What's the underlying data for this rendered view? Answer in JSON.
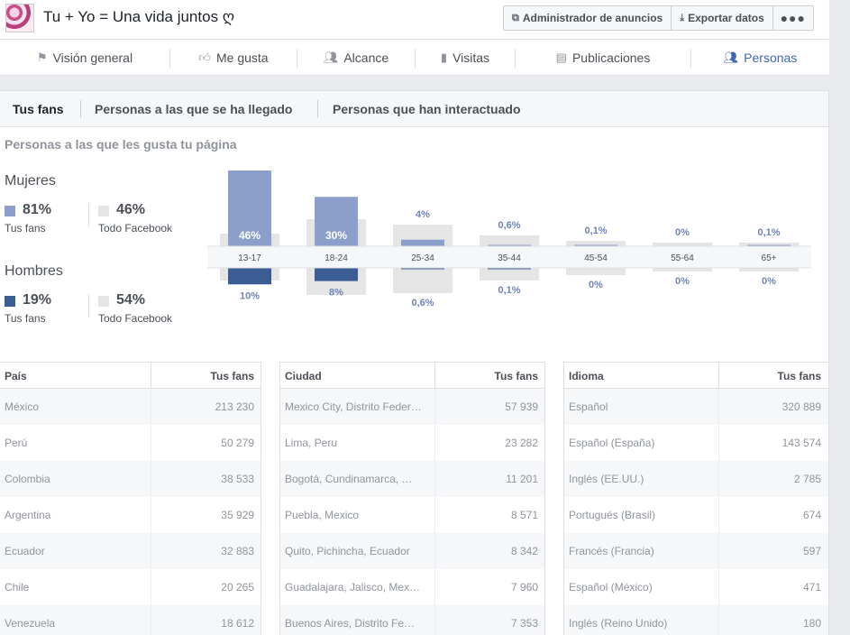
{
  "header": {
    "page_title": "Tu + Yo = Una vida juntos ღ",
    "ads_manager": "Administrador de anuncios",
    "export": "Exportar datos",
    "more": "●●●"
  },
  "nav": {
    "tabs": [
      {
        "label": "Visión general",
        "icon": "flag-icon"
      },
      {
        "label": "Me gusta",
        "icon": "thumbs-up-icon"
      },
      {
        "label": "Alcance",
        "icon": "people-icon"
      },
      {
        "label": "Visitas",
        "icon": "bar-chart-icon"
      },
      {
        "label": "Publicaciones",
        "icon": "posts-icon"
      },
      {
        "label": "Personas",
        "icon": "group-icon"
      }
    ],
    "active": "Personas"
  },
  "subtabs": [
    "Tus fans",
    "Personas a las que se ha llegado",
    "Personas que han interactuado"
  ],
  "section_title": "Personas a las que les gusta tu página",
  "colors": {
    "women": "#8c9fcb",
    "men": "#3b5d94",
    "facebook": "#e5e5e5",
    "accent": "#4267b2"
  },
  "summary": {
    "women": {
      "label": "Mujeres",
      "fans_pct": "81%",
      "fans_caption": "Tus fans",
      "fb_pct": "46%",
      "fb_caption": "Todo Facebook"
    },
    "men": {
      "label": "Hombres",
      "fans_pct": "19%",
      "fans_caption": "Tus fans",
      "fb_pct": "54%",
      "fb_caption": "Todo Facebook"
    }
  },
  "chart_data": {
    "type": "bar",
    "categories": [
      "13-17",
      "18-24",
      "25-34",
      "35-44",
      "45-54",
      "55-64",
      "65+"
    ],
    "series": [
      {
        "name": "Mujeres",
        "values": [
          46,
          30,
          4,
          0.6,
          0.1,
          0,
          0.1
        ],
        "labels": [
          "46%",
          "30%",
          "4%",
          "0,6%",
          "0,1%",
          "0%",
          "0,1%"
        ]
      },
      {
        "name": "Hombres",
        "values": [
          10,
          8,
          0.6,
          0.1,
          0,
          0,
          0
        ],
        "labels": [
          "10%",
          "8%",
          "0,6%",
          "0,1%",
          "0%",
          "0%",
          "0%"
        ]
      }
    ],
    "facebook_women": [
      7,
      15,
      12,
      6,
      3,
      2,
      2
    ],
    "facebook_men": [
      7,
      15,
      14,
      7,
      4,
      2,
      2
    ]
  },
  "tables": [
    {
      "col1": "País",
      "col2": "Tus fans",
      "rows": [
        [
          "México",
          "213 230"
        ],
        [
          "Perú",
          "50 279"
        ],
        [
          "Colombia",
          "38 533"
        ],
        [
          "Argentina",
          "35 929"
        ],
        [
          "Ecuador",
          "32 883"
        ],
        [
          "Chile",
          "20 265"
        ],
        [
          "Venezuela",
          "18 612"
        ]
      ]
    },
    {
      "col1": "Ciudad",
      "col2": "Tus fans",
      "rows": [
        [
          "Mexico City, Distrito Feder…",
          "57 939"
        ],
        [
          "Lima, Peru",
          "23 282"
        ],
        [
          "Bogotá, Cundinamarca, …",
          "11 201"
        ],
        [
          "Puebla, Mexico",
          "8 571"
        ],
        [
          "Quito, Pichincha, Ecuador",
          "8 342"
        ],
        [
          "Guadalajara, Jalisco, Mex…",
          "7 960"
        ],
        [
          "Buenos Aires, Distrito Fe…",
          "7 353"
        ]
      ]
    },
    {
      "col1": "Idioma",
      "col2": "Tus fans",
      "rows": [
        [
          "Español",
          "320 889"
        ],
        [
          "Español (España)",
          "143 574"
        ],
        [
          "Inglés (EE.UU.)",
          "2 785"
        ],
        [
          "Portugués (Brasil)",
          "674"
        ],
        [
          "Francés (Francia)",
          "597"
        ],
        [
          "Español (México)",
          "471"
        ],
        [
          "Inglés (Reino Unido)",
          "180"
        ]
      ]
    }
  ]
}
